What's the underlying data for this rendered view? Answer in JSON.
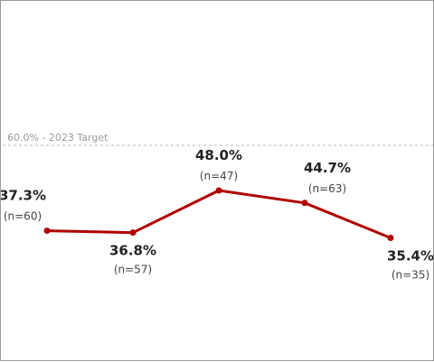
{
  "chart_data": {
    "type": "line",
    "title": "",
    "xlabel": "",
    "ylabel": "",
    "ylim": [
      0,
      100
    ],
    "grid": false,
    "series": [
      {
        "color": "#b00000",
        "values": [
          37.3,
          36.8,
          48.0,
          44.7,
          35.4
        ],
        "value_labels": [
          "37.3%",
          "36.8%",
          "48.0%",
          "44.7%",
          "35.4%"
        ],
        "n_labels": [
          "(n=60)",
          "(n=57)",
          "(n=47)",
          "(n=63)",
          "(n=35)"
        ],
        "label_side": [
          "above",
          "below",
          "above",
          "above",
          "below"
        ]
      }
    ],
    "reference_line": {
      "value": 60.0,
      "label": "60.0% - 2023 Target",
      "color": "#b8b8b8"
    }
  }
}
